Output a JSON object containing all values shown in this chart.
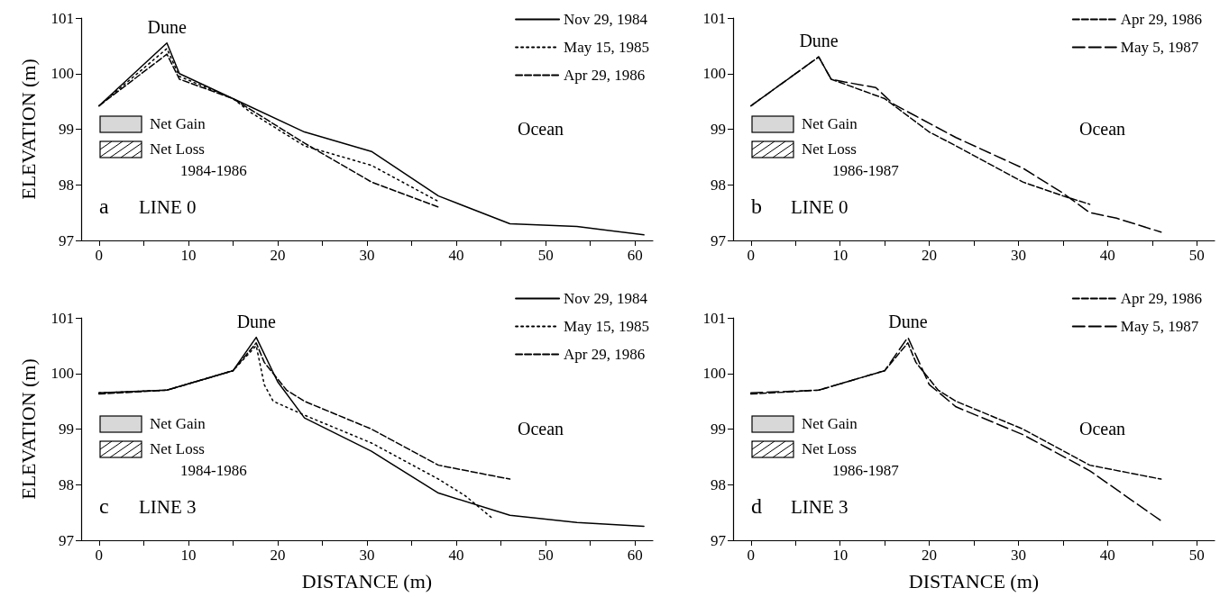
{
  "chart_data": [
    {
      "type": "line",
      "ylabel": "ELEVATION (m)",
      "xlim": [
        -2,
        62
      ],
      "xticks": [
        0,
        {
          "value": 5,
          "label": null
        },
        10,
        {
          "value": 15,
          "label": null
        },
        20,
        {
          "value": 25,
          "label": null
        },
        30,
        {
          "value": 35,
          "label": null
        },
        40,
        {
          "value": 45,
          "label": null
        },
        50,
        {
          "value": 55,
          "label": null
        },
        60
      ],
      "ylim": [
        97,
        101
      ],
      "yticks": [
        97,
        98,
        99,
        100,
        101
      ],
      "grid": false,
      "legend": "top right",
      "marker": "none",
      "annotations": [
        "Dune",
        "Ocean",
        "Net Gain",
        "Net Loss",
        "1984-1986",
        "a",
        "LINE 0"
      ],
      "series": [
        {
          "name": "Nov 29, 1984",
          "color": "#000000",
          "line_style": "solid",
          "x": [
            0,
            7.6,
            9,
            15,
            23,
            30.5,
            38,
            46,
            53.5,
            61
          ],
          "values": [
            99.42,
            100.55,
            100.0,
            99.55,
            98.95,
            98.6,
            97.8,
            97.3,
            97.25,
            97.1
          ]
        },
        {
          "name": "May 15, 1985",
          "color": "#000000",
          "line_style": "dotted",
          "x": [
            0,
            7.6,
            9,
            15,
            17,
            23,
            30.5,
            38
          ],
          "values": [
            99.42,
            100.45,
            99.95,
            99.55,
            99.3,
            98.7,
            98.35,
            97.7
          ]
        },
        {
          "name": "Apr 29, 1986",
          "color": "#000000",
          "line_style": "dashed",
          "x": [
            0,
            7.6,
            9,
            15,
            23,
            30.5,
            38
          ],
          "values": [
            99.42,
            100.35,
            99.9,
            99.55,
            98.75,
            98.05,
            97.6
          ]
        }
      ]
    },
    {
      "type": "line",
      "xlim": [
        -2,
        52
      ],
      "xticks": [
        0,
        {
          "value": 5,
          "label": null
        },
        10,
        {
          "value": 15,
          "label": null
        },
        20,
        {
          "value": 25,
          "label": null
        },
        30,
        {
          "value": 35,
          "label": null
        },
        40,
        {
          "value": 45,
          "label": null
        },
        50
      ],
      "ylim": [
        97,
        101
      ],
      "yticks": [
        97,
        98,
        99,
        100,
        101
      ],
      "grid": false,
      "legend": "top right",
      "marker": "none",
      "annotations": [
        "Dune",
        "Ocean",
        "Net Gain",
        "Net Loss",
        "1986-1987",
        "b",
        "LINE 0"
      ],
      "series": [
        {
          "name": "Apr 29, 1986",
          "color": "#000000",
          "line_style": "dashed",
          "x": [
            0,
            7.6,
            9,
            15,
            20,
            23,
            30.5,
            35,
            38
          ],
          "values": [
            99.42,
            100.3,
            99.9,
            99.55,
            98.95,
            98.7,
            98.05,
            97.8,
            97.65
          ]
        },
        {
          "name": "May 5, 1987",
          "color": "#000000",
          "line_style": "dashed",
          "x": [
            0,
            7.6,
            9,
            10.5,
            14,
            16,
            23,
            30.5,
            35,
            38,
            41,
            46
          ],
          "values": [
            99.42,
            100.3,
            99.9,
            99.85,
            99.75,
            99.45,
            98.85,
            98.3,
            97.85,
            97.5,
            97.4,
            97.15
          ]
        }
      ]
    },
    {
      "type": "line",
      "xlabel": "DISTANCE (m)",
      "ylabel": "ELEVATION (m)",
      "xlim": [
        -2,
        62
      ],
      "xticks": [
        0,
        {
          "value": 5,
          "label": null
        },
        10,
        {
          "value": 15,
          "label": null
        },
        20,
        {
          "value": 25,
          "label": null
        },
        30,
        {
          "value": 35,
          "label": null
        },
        40,
        {
          "value": 45,
          "label": null
        },
        50,
        {
          "value": 55,
          "label": null
        },
        60
      ],
      "ylim": [
        97,
        101
      ],
      "yticks": [
        97,
        98,
        99,
        100,
        101
      ],
      "grid": false,
      "legend": "top right",
      "marker": "none",
      "annotations": [
        "Dune",
        "Ocean",
        "Net Gain",
        "Net Loss",
        "1984-1986",
        "c",
        "LINE 3"
      ],
      "series": [
        {
          "name": "Nov 29, 1984",
          "color": "#000000",
          "line_style": "solid",
          "x": [
            0,
            7.6,
            15,
            17.6,
            20,
            23,
            30.5,
            38,
            46,
            53.5,
            61
          ],
          "values": [
            99.65,
            99.7,
            100.05,
            100.65,
            99.85,
            99.2,
            98.6,
            97.85,
            97.45,
            97.32,
            97.25
          ]
        },
        {
          "name": "May 15, 1985",
          "color": "#000000",
          "line_style": "dotted",
          "x": [
            0,
            7.6,
            15,
            17.6,
            18.5,
            19.5,
            23,
            30.5,
            38,
            41,
            44
          ],
          "values": [
            99.65,
            99.7,
            100.05,
            100.5,
            99.8,
            99.5,
            99.25,
            98.75,
            98.1,
            97.8,
            97.4
          ]
        },
        {
          "name": "Apr 29, 1986",
          "color": "#000000",
          "line_style": "dashed",
          "x": [
            0,
            7.6,
            15,
            17.6,
            18.5,
            21,
            23,
            30.5,
            38,
            46
          ],
          "values": [
            99.63,
            99.7,
            100.05,
            100.55,
            100.2,
            99.7,
            99.5,
            99.0,
            98.35,
            98.1
          ]
        }
      ]
    },
    {
      "type": "line",
      "xlabel": "DISTANCE (m)",
      "xlim": [
        -2,
        52
      ],
      "xticks": [
        0,
        {
          "value": 5,
          "label": null
        },
        10,
        {
          "value": 15,
          "label": null
        },
        20,
        {
          "value": 25,
          "label": null
        },
        30,
        {
          "value": 35,
          "label": null
        },
        40,
        {
          "value": 45,
          "label": null
        },
        50
      ],
      "ylim": [
        97,
        101
      ],
      "yticks": [
        97,
        98,
        99,
        100,
        101
      ],
      "grid": false,
      "legend": "top right",
      "marker": "none",
      "annotations": [
        "Dune",
        "Ocean",
        "Net Gain",
        "Net Loss",
        "1986-1987",
        "d",
        "LINE 3"
      ],
      "series": [
        {
          "name": "Apr 29, 1986",
          "color": "#000000",
          "line_style": "dashed",
          "x": [
            0,
            7.6,
            15,
            17.6,
            18.5,
            21,
            23,
            30.5,
            38,
            46
          ],
          "values": [
            99.63,
            99.7,
            100.05,
            100.55,
            100.2,
            99.7,
            99.5,
            99.0,
            98.35,
            98.1
          ]
        },
        {
          "name": "May 5, 1987",
          "color": "#000000",
          "line_style": "dashed",
          "x": [
            0,
            7.6,
            15,
            17.6,
            20,
            23,
            30.5,
            38,
            46
          ],
          "values": [
            99.65,
            99.7,
            100.05,
            100.65,
            99.8,
            99.4,
            98.9,
            98.25,
            97.35
          ]
        }
      ]
    }
  ]
}
